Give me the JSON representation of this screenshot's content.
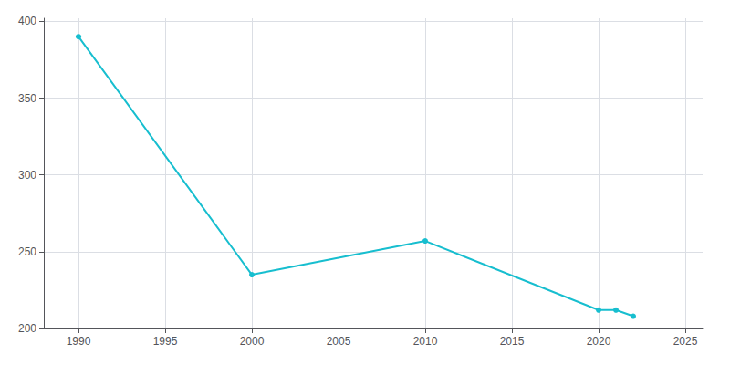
{
  "chart_data": {
    "type": "line",
    "x": [
      1990,
      2000,
      2010,
      2020,
      2021,
      2022
    ],
    "values": [
      390,
      235,
      257,
      212,
      212,
      208
    ],
    "color": "#17becf",
    "marker": "circle",
    "xlim": [
      1988,
      2026
    ],
    "ylim": [
      200,
      402
    ],
    "xticks": [
      1990,
      1995,
      2000,
      2005,
      2010,
      2015,
      2020,
      2025
    ],
    "yticks": [
      200,
      250,
      300,
      350,
      400
    ],
    "grid": true
  }
}
